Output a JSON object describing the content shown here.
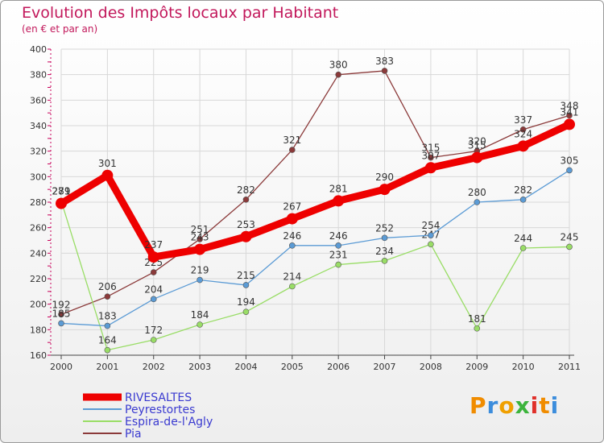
{
  "chart_data": {
    "type": "line",
    "title": "Evolution des Impôts locaux par Habitant",
    "subtitle": "(en € et par an)",
    "categories": [
      "2000",
      "2001",
      "2002",
      "2003",
      "2004",
      "2005",
      "2006",
      "2007",
      "2008",
      "2009",
      "2010",
      "2011"
    ],
    "ylim": [
      160,
      400
    ],
    "yticks": [
      160,
      180,
      200,
      220,
      240,
      260,
      280,
      300,
      320,
      340,
      360,
      380,
      400
    ],
    "series": [
      {
        "name": "Pia",
        "color": "#8b3a3a",
        "values": [
          192,
          206,
          225,
          251,
          282,
          321,
          380,
          383,
          315,
          320,
          337,
          348
        ]
      },
      {
        "name": "Espira-de-l'Agly",
        "color": "#99dd66",
        "values": [
          281,
          164,
          172,
          184,
          194,
          214,
          231,
          234,
          247,
          181,
          244,
          245
        ]
      },
      {
        "name": "Peyrestortes",
        "color": "#5b9bd5",
        "values": [
          185,
          183,
          204,
          219,
          215,
          246,
          246,
          252,
          254,
          280,
          282,
          305
        ]
      },
      {
        "name": "RIVESALTES",
        "color": "#ee0000",
        "values": [
          279,
          301,
          237,
          243,
          253,
          267,
          281,
          290,
          307,
          315,
          324,
          341
        ]
      }
    ],
    "legend": [
      {
        "name": "RIVESALTES",
        "color": "#ee0000"
      },
      {
        "name": "Peyrestortes",
        "color": "#5b9bd5"
      },
      {
        "name": "Espira-de-l'Agly",
        "color": "#99dd66"
      },
      {
        "name": "Pia",
        "color": "#8b3a3a"
      }
    ]
  },
  "logo": {
    "letters": [
      "P",
      "r",
      "o",
      "x",
      "i",
      "t",
      "i"
    ],
    "colors": [
      "#f08c00",
      "#3c8ddc",
      "#f0a000",
      "#3cb43c",
      "#e0302a",
      "#f08c00",
      "#3c8ddc"
    ]
  }
}
